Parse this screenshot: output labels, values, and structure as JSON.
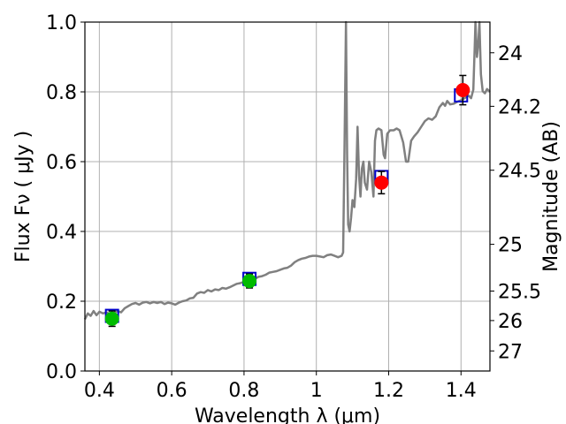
{
  "chart_data": {
    "type": "line",
    "xlabel": "Wavelength  λ (μm)",
    "ylabel": "Flux  Fν  ( μJy )",
    "ylabel_right": "Magnitude (AB)",
    "xlim": [
      0.36,
      1.48
    ],
    "ylim": [
      0.0,
      1.0
    ],
    "grid": true,
    "x_ticks": [
      0.4,
      0.6,
      0.8,
      1.0,
      1.2,
      1.4
    ],
    "x_tick_labels": [
      "0.4",
      "0.6",
      "0.8",
      "1",
      "1.2",
      "1.4"
    ],
    "y_ticks": [
      0.0,
      0.2,
      0.4,
      0.6,
      0.8,
      1.0
    ],
    "y_tick_labels": [
      "0.0",
      "0.2",
      "0.4",
      "0.6",
      "0.8",
      "1.0"
    ],
    "right_ticks": [
      {
        "label": "24",
        "mag": 24.0
      },
      {
        "label": "24.2",
        "mag": 24.2
      },
      {
        "label": "24.5",
        "mag": 24.5
      },
      {
        "label": "25",
        "mag": 25.0
      },
      {
        "label": "25.5",
        "mag": 25.5
      },
      {
        "label": "26",
        "mag": 26.0
      },
      {
        "label": "27",
        "mag": 27.0
      }
    ],
    "colors": {
      "spectrum": "#808080",
      "model_box": "#0000cc",
      "optical_points": "#00bb00",
      "nir_points": "#ff0000",
      "errorbar": "#000000"
    },
    "series": [
      {
        "values": [
          [
            0.36,
            0.148
          ],
          [
            0.368,
            0.165
          ],
          [
            0.376,
            0.158
          ],
          [
            0.384,
            0.172
          ],
          [
            0.392,
            0.16
          ],
          [
            0.4,
            0.17
          ],
          [
            0.41,
            0.165
          ],
          [
            0.42,
            0.168
          ],
          [
            0.43,
            0.162
          ],
          [
            0.44,
            0.166
          ],
          [
            0.45,
            0.172
          ],
          [
            0.46,
            0.168
          ],
          [
            0.47,
            0.18
          ],
          [
            0.48,
            0.186
          ],
          [
            0.49,
            0.192
          ],
          [
            0.5,
            0.195
          ],
          [
            0.51,
            0.19
          ],
          [
            0.52,
            0.196
          ],
          [
            0.53,
            0.198
          ],
          [
            0.54,
            0.194
          ],
          [
            0.55,
            0.198
          ],
          [
            0.56,
            0.195
          ],
          [
            0.57,
            0.198
          ],
          [
            0.58,
            0.192
          ],
          [
            0.59,
            0.196
          ],
          [
            0.6,
            0.194
          ],
          [
            0.61,
            0.19
          ],
          [
            0.62,
            0.196
          ],
          [
            0.63,
            0.2
          ],
          [
            0.64,
            0.202
          ],
          [
            0.65,
            0.208
          ],
          [
            0.66,
            0.21
          ],
          [
            0.67,
            0.222
          ],
          [
            0.68,
            0.226
          ],
          [
            0.69,
            0.224
          ],
          [
            0.7,
            0.232
          ],
          [
            0.71,
            0.228
          ],
          [
            0.72,
            0.234
          ],
          [
            0.73,
            0.232
          ],
          [
            0.74,
            0.238
          ],
          [
            0.75,
            0.236
          ],
          [
            0.76,
            0.24
          ],
          [
            0.77,
            0.245
          ],
          [
            0.78,
            0.25
          ],
          [
            0.79,
            0.252
          ],
          [
            0.8,
            0.256
          ],
          [
            0.81,
            0.258
          ],
          [
            0.82,
            0.262
          ],
          [
            0.83,
            0.264
          ],
          [
            0.84,
            0.27
          ],
          [
            0.85,
            0.272
          ],
          [
            0.86,
            0.276
          ],
          [
            0.87,
            0.282
          ],
          [
            0.88,
            0.284
          ],
          [
            0.89,
            0.286
          ],
          [
            0.9,
            0.29
          ],
          [
            0.91,
            0.294
          ],
          [
            0.92,
            0.296
          ],
          [
            0.93,
            0.302
          ],
          [
            0.94,
            0.312
          ],
          [
            0.95,
            0.318
          ],
          [
            0.96,
            0.322
          ],
          [
            0.97,
            0.324
          ],
          [
            0.98,
            0.328
          ],
          [
            0.99,
            0.33
          ],
          [
            1.0,
            0.33
          ],
          [
            1.01,
            0.328
          ],
          [
            1.02,
            0.326
          ],
          [
            1.03,
            0.332
          ],
          [
            1.04,
            0.334
          ],
          [
            1.05,
            0.33
          ],
          [
            1.06,
            0.326
          ],
          [
            1.07,
            0.33
          ],
          [
            1.074,
            0.34
          ],
          [
            1.078,
            0.65
          ],
          [
            1.082,
            1.02
          ],
          [
            1.085,
            0.62
          ],
          [
            1.088,
            0.42
          ],
          [
            1.092,
            0.4
          ],
          [
            1.096,
            0.44
          ],
          [
            1.1,
            0.49
          ],
          [
            1.105,
            0.47
          ],
          [
            1.11,
            0.55
          ],
          [
            1.114,
            0.7
          ],
          [
            1.118,
            0.56
          ],
          [
            1.122,
            0.5
          ],
          [
            1.126,
            0.58
          ],
          [
            1.13,
            0.6
          ],
          [
            1.134,
            0.54
          ],
          [
            1.14,
            0.52
          ],
          [
            1.146,
            0.6
          ],
          [
            1.152,
            0.57
          ],
          [
            1.158,
            0.5
          ],
          [
            1.162,
            0.66
          ],
          [
            1.166,
            0.69
          ],
          [
            1.172,
            0.695
          ],
          [
            1.18,
            0.69
          ],
          [
            1.186,
            0.62
          ],
          [
            1.19,
            0.61
          ],
          [
            1.196,
            0.68
          ],
          [
            1.204,
            0.69
          ],
          [
            1.214,
            0.69
          ],
          [
            1.222,
            0.695
          ],
          [
            1.23,
            0.69
          ],
          [
            1.24,
            0.655
          ],
          [
            1.248,
            0.6
          ],
          [
            1.254,
            0.6
          ],
          [
            1.262,
            0.66
          ],
          [
            1.27,
            0.672
          ],
          [
            1.28,
            0.684
          ],
          [
            1.29,
            0.7
          ],
          [
            1.3,
            0.716
          ],
          [
            1.31,
            0.724
          ],
          [
            1.32,
            0.72
          ],
          [
            1.33,
            0.73
          ],
          [
            1.34,
            0.756
          ],
          [
            1.35,
            0.768
          ],
          [
            1.356,
            0.76
          ],
          [
            1.362,
            0.774
          ],
          [
            1.37,
            0.764
          ],
          [
            1.38,
            0.766
          ],
          [
            1.39,
            0.772
          ],
          [
            1.4,
            0.776
          ],
          [
            1.41,
            0.782
          ],
          [
            1.42,
            0.79
          ],
          [
            1.428,
            0.782
          ],
          [
            1.434,
            0.806
          ],
          [
            1.438,
            0.93
          ],
          [
            1.44,
            1.03
          ],
          [
            1.444,
            0.9
          ],
          [
            1.448,
            0.94
          ],
          [
            1.451,
            1.03
          ],
          [
            1.455,
            0.85
          ],
          [
            1.46,
            0.802
          ],
          [
            1.466,
            0.796
          ],
          [
            1.472,
            0.808
          ],
          [
            1.48,
            0.8
          ]
        ]
      },
      {
        "type": "box",
        "values": [
          [
            0.435,
            0.158
          ],
          [
            0.815,
            0.264
          ],
          [
            1.18,
            0.556
          ],
          [
            1.4,
            0.79
          ]
        ]
      },
      {
        "type": "scatter",
        "values": [
          {
            "x": 0.435,
            "y": 0.15,
            "err": 0.022
          },
          {
            "x": 0.815,
            "y": 0.258,
            "err": 0.02
          }
        ]
      },
      {
        "type": "scatter",
        "values": [
          {
            "x": 1.18,
            "y": 0.54,
            "err": 0.032
          },
          {
            "x": 1.405,
            "y": 0.805,
            "err": 0.042
          }
        ]
      }
    ]
  }
}
